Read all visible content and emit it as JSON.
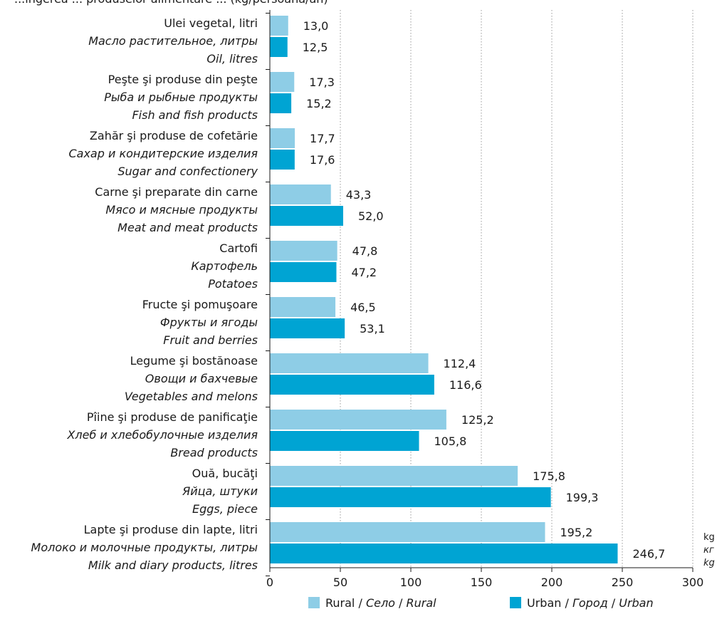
{
  "colors": {
    "rural": "#8ecde6",
    "urban": "#00a4d3",
    "axis": "#1a1a1a",
    "grid": "#9a9a9a"
  },
  "header_text": "...ingerea ... produselor alimentare ... (kg/persoană/an)",
  "unit_labels": [
    "kg",
    "кг",
    "kg"
  ],
  "chart_data": {
    "type": "bar",
    "orientation": "horizontal",
    "categories": [
      [
        "Ulei vegetal, litri",
        "Масло растительное, литры",
        "Oil, litres"
      ],
      [
        "Peşte şi produse din peşte",
        "Рыба и рыбные продукты",
        "Fish and fish products"
      ],
      [
        "Zahăr şi produse de cofetărie",
        "Сахар и кондитерские изделия",
        "Sugar and confectionery"
      ],
      [
        "Carne şi preparate din carne",
        "Мясо и мясные продукты",
        "Meat and meat products"
      ],
      [
        "Cartofi",
        "Картофель",
        "Potatoes"
      ],
      [
        "Fructe şi pomuşoare",
        "Фрукты и ягоды",
        "Fruit and berries"
      ],
      [
        "Legume şi bostănoase",
        "Овощи и бахчевые",
        "Vegetables and melons"
      ],
      [
        "Pîine şi produse de panificaţie",
        "Хлеб и хлебобулочные изделия",
        "Bread products"
      ],
      [
        "Ouă, bucăţi",
        "Яйца, штуки",
        "Eggs, piece"
      ],
      [
        "Lapte şi produse din lapte, litri",
        "Молоко и молочные продукты, литры",
        "Milk and diary products, litres"
      ]
    ],
    "series": [
      {
        "name": [
          "Rural",
          "Село",
          "Rural"
        ],
        "values": [
          13.0,
          17.3,
          17.7,
          43.3,
          47.8,
          46.5,
          112.4,
          125.2,
          175.8,
          195.2
        ],
        "labels": [
          "13,0",
          "17,3",
          "17,7",
          "43,3",
          "47,8",
          "46,5",
          "112,4",
          "125,2",
          "175,8",
          "195,2"
        ]
      },
      {
        "name": [
          "Urban",
          "Город",
          "Urban"
        ],
        "values": [
          12.5,
          15.2,
          17.6,
          52.0,
          47.2,
          53.1,
          116.6,
          105.8,
          199.3,
          246.7
        ],
        "labels": [
          "12,5",
          "15,2",
          "17,6",
          "52,0",
          "47,2",
          "53,1",
          "116,6",
          "105,8",
          "199,3",
          "246,7"
        ]
      }
    ],
    "xlim": [
      0,
      300
    ],
    "xticks": [
      0,
      50,
      100,
      150,
      200,
      250,
      300
    ],
    "grid": "vertical dashed",
    "legend": "bottom"
  }
}
